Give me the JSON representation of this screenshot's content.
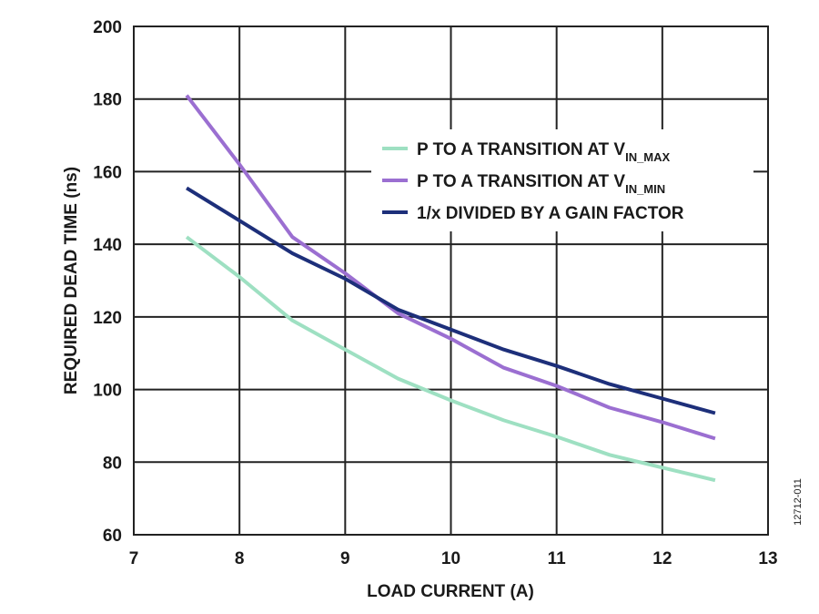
{
  "chart_data": {
    "type": "line",
    "xlabel": "LOAD CURRENT (A)",
    "ylabel": "REQUIRED DEAD TIME (ns)",
    "xlim": [
      7,
      13
    ],
    "ylim": [
      60,
      200
    ],
    "x_ticks": [
      7,
      8,
      9,
      10,
      11,
      12,
      13
    ],
    "y_ticks": [
      60,
      80,
      100,
      120,
      140,
      160,
      180,
      200
    ],
    "x_tick_labels": [
      "7",
      "8",
      "9",
      "10",
      "11",
      "12",
      "13"
    ],
    "y_tick_labels": [
      "60",
      "80",
      "100",
      "120",
      "140",
      "160",
      "180",
      "200"
    ],
    "grid": true,
    "legend_position": "upper-right",
    "figure_id": "12712-011",
    "series": [
      {
        "name": "P TO A TRANSITION AT V",
        "name_subscript": "IN_MAX",
        "color": "#9ee0c2",
        "x": [
          7.5,
          8.0,
          8.5,
          9.0,
          9.5,
          10.0,
          10.5,
          11.0,
          11.5,
          12.0,
          12.5
        ],
        "y": [
          142,
          131,
          119,
          111,
          103,
          97,
          91.5,
          87,
          82,
          78.5,
          75
        ]
      },
      {
        "name": "P TO A TRANSITION AT V",
        "name_subscript": "IN_MIN",
        "color": "#9b6fd1",
        "x": [
          7.5,
          8.0,
          8.5,
          9.0,
          9.5,
          10.0,
          10.5,
          11.0,
          11.5,
          12.0,
          12.5
        ],
        "y": [
          181,
          162,
          142,
          132,
          121,
          114,
          106,
          101,
          95,
          91,
          86.5
        ]
      },
      {
        "name": "1/x DIVIDED BY A GAIN FACTOR",
        "name_subscript": "",
        "color": "#1d2f7a",
        "x": [
          7.5,
          8.0,
          8.5,
          9.0,
          9.5,
          10.0,
          10.5,
          11.0,
          11.5,
          12.0,
          12.5
        ],
        "y": [
          155.5,
          146.5,
          137.5,
          130.5,
          122,
          116.5,
          111,
          106.5,
          101.5,
          97.5,
          93.5
        ]
      }
    ]
  }
}
